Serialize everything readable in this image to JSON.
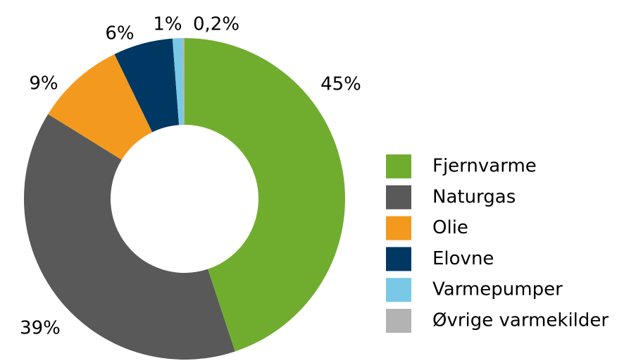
{
  "chart_data": {
    "type": "donut",
    "categories": [
      "Fjernvarme",
      "Naturgas",
      "Olie",
      "Elovne",
      "Varmepumper",
      "Øvrige varmekilder"
    ],
    "values": [
      45,
      39,
      9,
      6,
      1,
      0.2
    ],
    "value_labels": [
      "45%",
      "39%",
      "9%",
      "6%",
      "1%",
      "0,2%"
    ],
    "colors": [
      "#70ad2e",
      "#595959",
      "#f39a1e",
      "#003864",
      "#79c8e6",
      "#b3b3b3"
    ],
    "legend": "right"
  }
}
